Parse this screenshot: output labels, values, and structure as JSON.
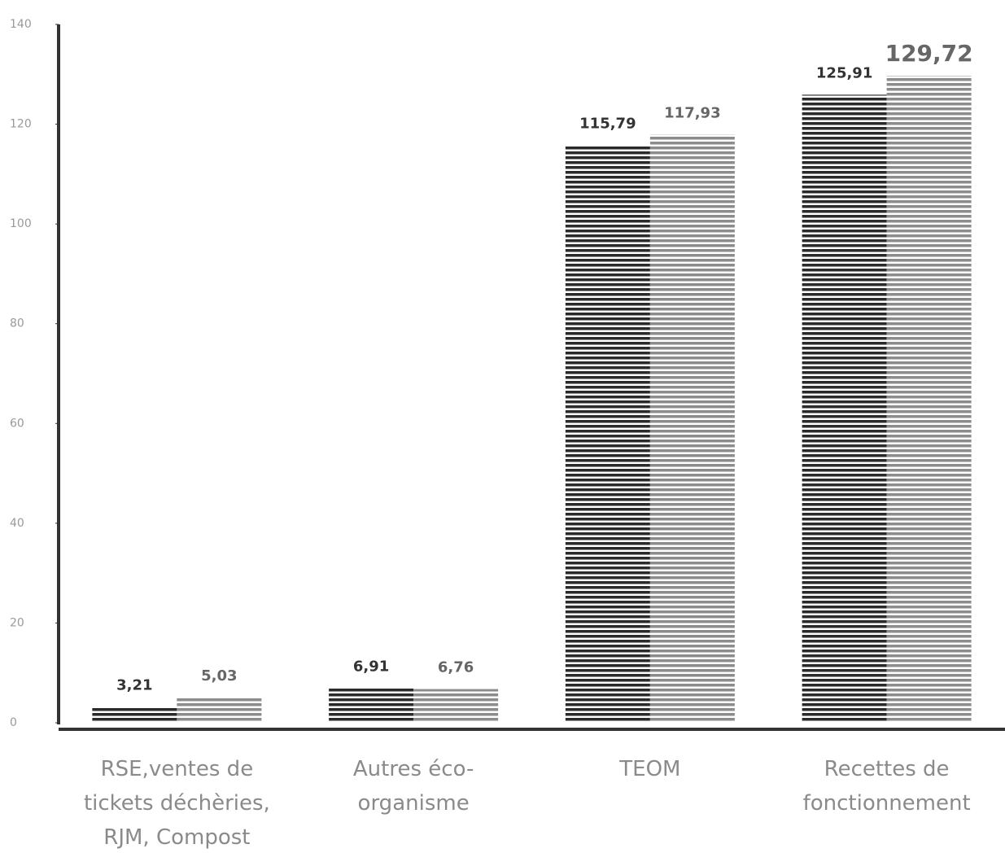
{
  "chart_data": {
    "type": "bar",
    "categories": [
      "RSE,ventes de tickets déchèries, RJM, Compost",
      "Autres éco-organisme",
      "TEOM",
      "Recettes de fonctionnement"
    ],
    "series": [
      {
        "color": "#2a2a2a",
        "values": [
          3.21,
          6.91,
          115.79,
          125.91
        ],
        "value_labels": [
          "3,21",
          "6,91",
          "115,79",
          "125,91"
        ]
      },
      {
        "color": "#8c8c8c",
        "values": [
          5.03,
          6.76,
          117.93,
          129.72
        ],
        "value_labels": [
          "5,03",
          "6,76",
          "117,93",
          "129,72"
        ]
      }
    ],
    "ylim": [
      0,
      140
    ],
    "yticks": [
      0,
      20,
      40,
      60,
      80,
      100,
      120,
      140
    ],
    "grid": false
  }
}
